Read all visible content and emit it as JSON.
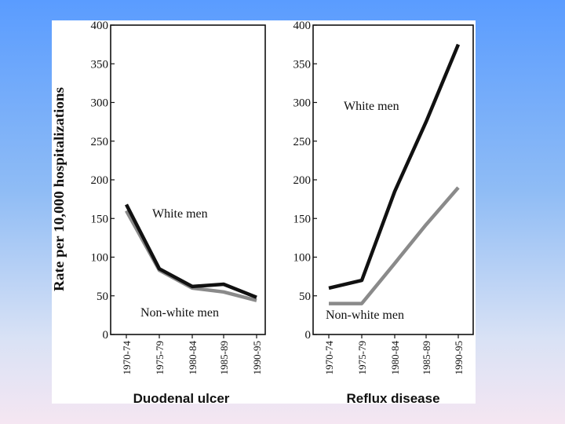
{
  "ylabel": "Rate per 10,000 hospitalizations",
  "colors": {
    "white_men": "#111111",
    "non_white_men": "#8a8a8a"
  },
  "chart_data": [
    {
      "type": "line",
      "title": "Duodenal ulcer",
      "categories": [
        "1970-74",
        "1975-79",
        "1980-84",
        "1985-89",
        "1990-95"
      ],
      "ylim": [
        0,
        400
      ],
      "yticks": [
        "0",
        "50",
        "100",
        "150",
        "200",
        "250",
        "300",
        "350",
        "400"
      ],
      "series": [
        {
          "name": "White men",
          "values": [
            168,
            85,
            62,
            65,
            48
          ]
        },
        {
          "name": "Non-white men",
          "values": [
            160,
            83,
            60,
            55,
            44
          ]
        }
      ]
    },
    {
      "type": "line",
      "title": "Reflux disease",
      "categories": [
        "1970-74",
        "1975-79",
        "1980-84",
        "1985-89",
        "1990-95"
      ],
      "ylim": [
        0,
        400
      ],
      "yticks": [
        "0",
        "50",
        "100",
        "150",
        "200",
        "250",
        "300",
        "350",
        "400"
      ],
      "series": [
        {
          "name": "White men",
          "values": [
            60,
            70,
            185,
            275,
            375
          ]
        },
        {
          "name": "Non-white men",
          "values": [
            40,
            40,
            92,
            142,
            190
          ]
        }
      ]
    }
  ]
}
